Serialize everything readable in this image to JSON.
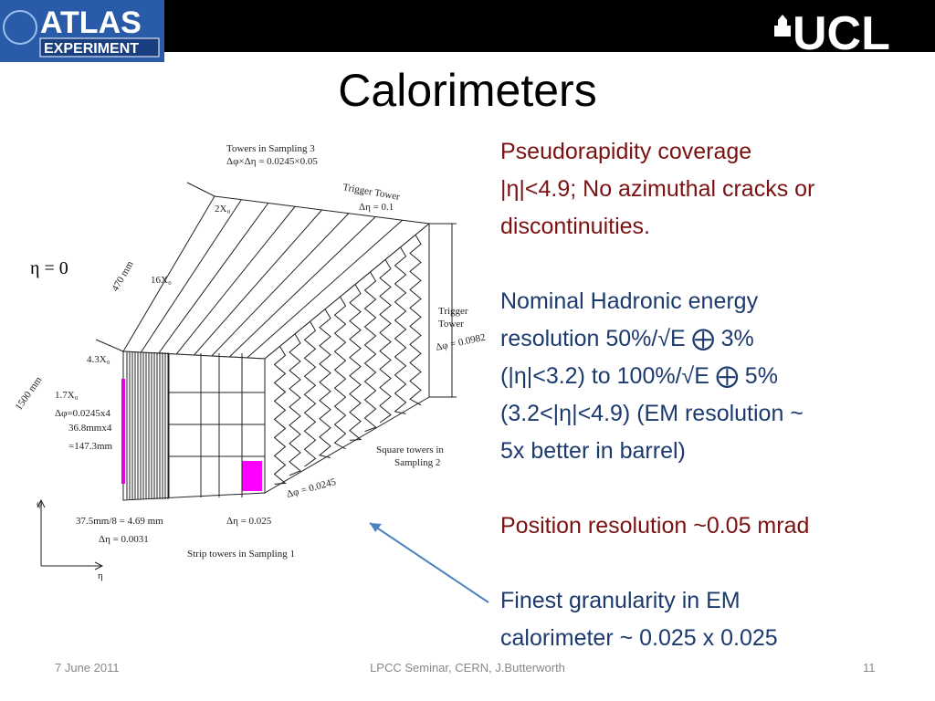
{
  "header": {
    "logo_left": [
      "ATLAS",
      "EXPERIMENT"
    ],
    "logo_right": "UCL"
  },
  "title": "Calorimeters",
  "paragraphs": [
    {
      "color": "#7a1212",
      "lines": [
        "Pseudorapidity coverage",
        "|η|<4.9; No azimuthal cracks or",
        "discontinuities."
      ]
    },
    {
      "color": "#1c3a6e",
      "lines": [
        "Nominal Hadronic energy",
        "resolution 50%/√E ⨁ 3%",
        "(|η|<3.2) to 100%/√E ⨁ 5%",
        "(3.2<|η|<4.9) (EM resolution ~",
        "5x better in barrel)"
      ]
    },
    {
      "color": "#7a1212",
      "lines": [
        "Position resolution ~0.05 mrad"
      ]
    },
    {
      "color": "#1c3a6e",
      "lines": [
        "Finest granularity in EM",
        "calorimeter ~ 0.025 x 0.025"
      ]
    }
  ],
  "diagram": {
    "labels": [
      "Towers in Sampling 3",
      "Δφ×Δη = 0.0245×0.05",
      "Trigger Tower",
      "Δη = 0.1",
      "2X₀",
      "16X₀",
      "470 mm",
      "η = 0",
      "Trigger",
      "Tower",
      "Δφ = 0.0982",
      "4.3X₀",
      "1500 mm",
      "1.7X₀",
      "Δφ=0.0245x4",
      "36.8mmx4",
      "=147.3mm",
      "Square towers in",
      "Sampling 2",
      "Δφ = 0.0245",
      "Δη = 0.025",
      "37.5mm/8 = 4.69 mm",
      "Δη = 0.0031",
      "Strip towers in Sampling 1",
      "φ",
      "η"
    ]
  },
  "footer": {
    "date": "7 June 2011",
    "event": "LPCC Seminar, CERN, J.Butterworth",
    "page": 11
  }
}
